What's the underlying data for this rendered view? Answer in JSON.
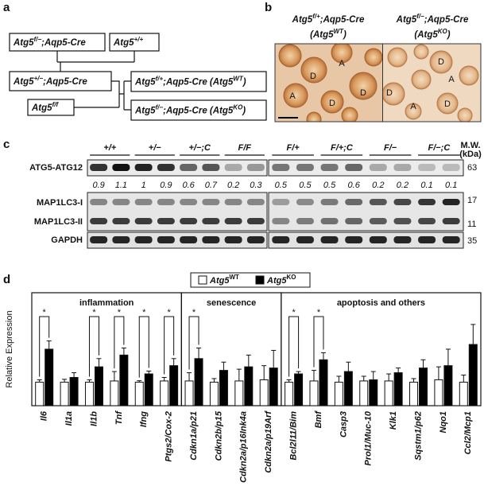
{
  "panels": {
    "a": {
      "label": "a",
      "nodes": [
        [
          "Atg5",
          "f/−",
          ";Aqp5-Cre"
        ],
        [
          "Atg5",
          "+/+"
        ],
        [
          "Atg5",
          "+/−",
          ";Aqp5-Cre"
        ],
        [
          "Atg5",
          "f/f"
        ],
        [
          "Atg5",
          "f/+",
          ";Aqp5-Cre (Atg5",
          "WT",
          ")"
        ],
        [
          "Atg5",
          "f/−",
          ";Aqp5-Cre (Atg5",
          "KO",
          ")"
        ]
      ]
    },
    "b": {
      "label": "b",
      "images": [
        {
          "title": [
            "Atg5",
            "f/+",
            ";Aqp5-Cre"
          ],
          "subtitle": [
            "(Atg5",
            "WT",
            ")"
          ],
          "labels": [
            "D",
            "A",
            "D",
            "A",
            "D"
          ]
        },
        {
          "title": [
            "Atg5",
            "f/−",
            ";Aqp5-Cre"
          ],
          "subtitle": [
            "(Atg5",
            "KO",
            ")"
          ],
          "labels": [
            "D",
            "A",
            "D",
            "D",
            "A"
          ]
        }
      ]
    },
    "c": {
      "label": "c",
      "genotypes": [
        "+/+",
        "+/−",
        "+/−;C",
        "F/F",
        "F/+",
        "F/+;C",
        "F/−",
        "F/−;C"
      ],
      "rows": [
        "ATG5-ATG12",
        "MAP1LC3-I",
        "MAP1LC3-II",
        "GAPDH"
      ],
      "quantification": [
        0.9,
        1.1,
        1,
        0.9,
        0.6,
        0.7,
        0.2,
        0.3,
        0.5,
        0.5,
        0.5,
        0.6,
        0.2,
        0.2,
        0.1,
        0.1
      ],
      "mw_title": [
        "M.W.",
        "(kDa)"
      ],
      "mw_markers": [
        63,
        17,
        11,
        35
      ]
    },
    "d": {
      "label": "d"
    }
  },
  "chart_data": {
    "type": "bar",
    "y_label": "Relative Expression",
    "categories": [
      "Il6",
      "Il1a",
      "Il1b",
      "Tnf",
      "Ifng",
      "Ptgs2/Cox-2",
      "Cdkn1a/p21",
      "Cdkn2b/p15",
      "Cdkn2a/p16Ink4a",
      "Cdkn2a/p19Arf",
      "Bcl2l11/Bim",
      "Bmf",
      "Casp3",
      "Prol1/Muc-10",
      "Klk1",
      "Sqstm1/p62",
      "Nqo1",
      "Ccl2/Mcp1"
    ],
    "groups": [
      {
        "name": "inflammation",
        "size": 6
      },
      {
        "name": "senescence",
        "size": 4
      },
      {
        "name": "apoptosis and others",
        "size": 8
      }
    ],
    "series": [
      {
        "name": "Atg5",
        "name_sup": "WT",
        "color": "#ffffff",
        "values": [
          1,
          1,
          1,
          1.05,
          1,
          1.05,
          1.05,
          1,
          1.05,
          1.1,
          1,
          1.05,
          1,
          1.05,
          1.05,
          1,
          1.1,
          1
        ],
        "errors": [
          0.1,
          0.12,
          0.1,
          0.4,
          0.06,
          0.15,
          0.35,
          0.15,
          0.5,
          0.6,
          0.1,
          0.45,
          0.25,
          0.2,
          0.3,
          0.15,
          0.55,
          0.3
        ]
      },
      {
        "name": "Atg5",
        "name_sup": "KO",
        "color": "#000000",
        "values": [
          2.4,
          1.2,
          1.65,
          2.15,
          1.35,
          1.7,
          2,
          1.5,
          1.65,
          1.6,
          1.35,
          1.95,
          1.45,
          1.1,
          1.4,
          1.6,
          1.7,
          2.6
        ],
        "errors": [
          0.35,
          0.2,
          0.35,
          0.3,
          0.12,
          0.3,
          0.45,
          0.35,
          0.5,
          0.75,
          0.1,
          0.3,
          0.4,
          0.35,
          0.2,
          0.35,
          0.7,
          0.85
        ]
      }
    ],
    "significant": [
      true,
      false,
      true,
      true,
      true,
      true,
      true,
      false,
      false,
      false,
      true,
      true,
      false,
      false,
      false,
      false,
      false,
      false
    ],
    "significance_mark": "*",
    "ylim": [
      0,
      5
    ]
  }
}
